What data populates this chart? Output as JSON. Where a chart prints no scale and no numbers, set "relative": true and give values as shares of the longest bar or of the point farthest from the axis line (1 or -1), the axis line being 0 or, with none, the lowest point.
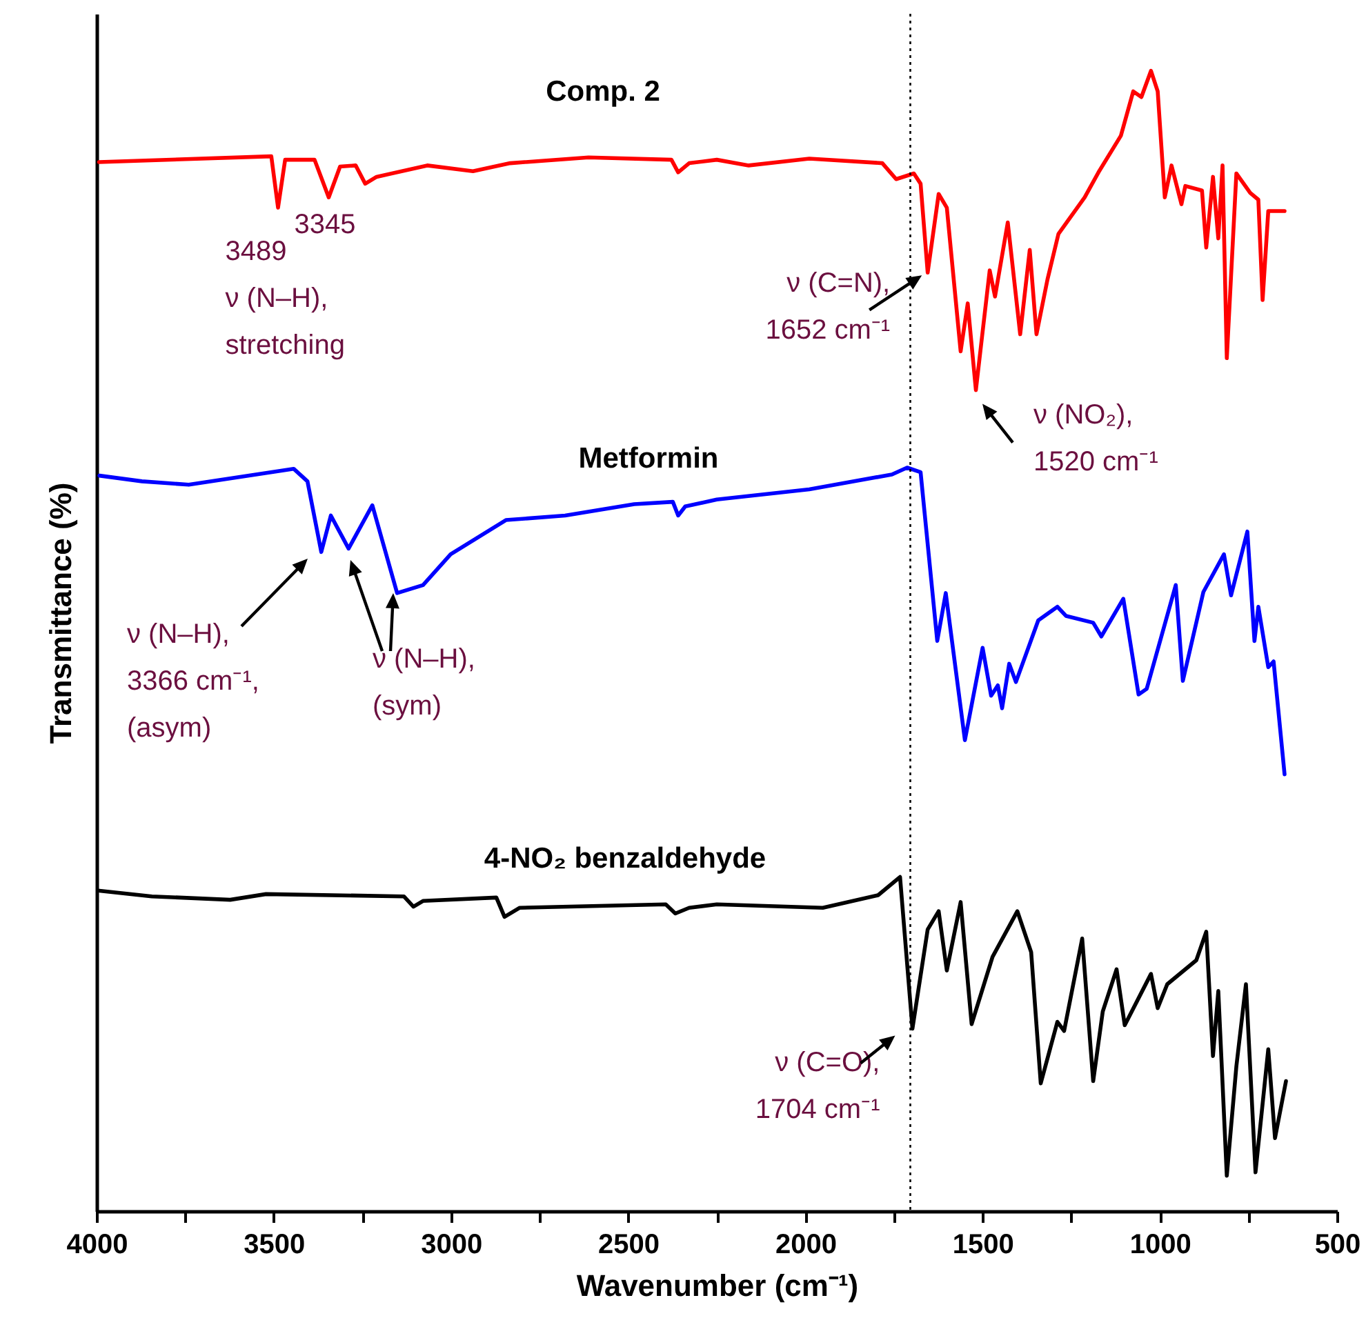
{
  "chart_data": {
    "type": "line",
    "relative": true,
    "xlabel": "Wavenumber (cm⁻¹)",
    "ylabel": "Transmittance (%)",
    "tick_labels": "x",
    "xlim": [
      4000,
      500
    ],
    "xticks": [
      4000,
      {
        "value": 3750,
        "label": null
      },
      3500,
      {
        "value": 3250,
        "label": null
      },
      3000,
      {
        "value": 2750,
        "label": null
      },
      2500,
      {
        "value": 2250,
        "label": null
      },
      2000,
      {
        "value": 1750,
        "label": null
      },
      1500,
      {
        "value": 1250,
        "label": null
      },
      1000,
      {
        "value": 750,
        "label": null
      },
      500
    ],
    "series": [
      {
        "name": "Comp. 2",
        "color": "#ff0000",
        "x": [
          3993,
          3507,
          3488,
          3468,
          3385,
          3345,
          3313,
          3269,
          3242,
          3210,
          3067,
          2938,
          2833,
          2612,
          2378,
          2359,
          2328,
          2250,
          2160,
          1989,
          1783,
          1744,
          1694,
          1675,
          1655,
          1624,
          1601,
          1562,
          1542,
          1519,
          1480,
          1465,
          1429,
          1394,
          1367,
          1348,
          1317,
          1286,
          1212,
          1173,
          1110,
          1075,
          1052,
          1025,
          1006,
          986,
          967,
          939,
          928,
          881,
          869,
          850,
          835,
          823,
          811,
          784,
          745,
          722,
          710,
          694,
          648
        ],
        "values": [
          0.92,
          0.925,
          0.88,
          0.922,
          0.922,
          0.889,
          0.916,
          0.917,
          0.901,
          0.907,
          0.917,
          0.912,
          0.919,
          0.924,
          0.922,
          0.911,
          0.919,
          0.922,
          0.917,
          0.923,
          0.919,
          0.905,
          0.91,
          0.901,
          0.823,
          0.892,
          0.88,
          0.754,
          0.796,
          0.72,
          0.825,
          0.802,
          0.867,
          0.769,
          0.843,
          0.769,
          0.817,
          0.857,
          0.889,
          0.911,
          0.943,
          0.982,
          0.977,
          1,
          0.982,
          0.889,
          0.917,
          0.883,
          0.899,
          0.895,
          0.845,
          0.907,
          0.853,
          0.917,
          0.748,
          0.91,
          0.893,
          0.887,
          0.799,
          0.877,
          0.877
        ]
      },
      {
        "name": "Metformin",
        "color": "#0000ff",
        "x": [
          3992,
          3872,
          3740,
          3444,
          3405,
          3366,
          3339,
          3289,
          3222,
          3152,
          3079,
          3001,
          2845,
          2678,
          2483,
          2374,
          2359,
          2339,
          2250,
          1989,
          1756,
          1713,
          1675,
          1628,
          1604,
          1550,
          1500,
          1476,
          1457,
          1445,
          1425,
          1406,
          1343,
          1289,
          1265,
          1188,
          1165,
          1103,
          1060,
          1037,
          955,
          935,
          877,
          819,
          799,
          753,
          733,
          722,
          694,
          679,
          648
        ],
        "values": [
          0.645,
          0.64,
          0.637,
          0.651,
          0.64,
          0.578,
          0.61,
          0.581,
          0.619,
          0.542,
          0.549,
          0.576,
          0.606,
          0.61,
          0.62,
          0.622,
          0.61,
          0.618,
          0.624,
          0.633,
          0.646,
          0.652,
          0.648,
          0.5,
          0.542,
          0.413,
          0.494,
          0.452,
          0.461,
          0.441,
          0.48,
          0.464,
          0.518,
          0.53,
          0.522,
          0.516,
          0.504,
          0.537,
          0.453,
          0.458,
          0.549,
          0.465,
          0.543,
          0.576,
          0.54,
          0.596,
          0.5,
          0.53,
          0.477,
          0.482,
          0.383
        ]
      },
      {
        "name": "4-NO₂ benzaldehyde",
        "color": "#000000",
        "x": [
          3992,
          3844,
          3623,
          3522,
          3133,
          3106,
          3079,
          2872,
          2849,
          2806,
          2394,
          2367,
          2328,
          2250,
          1951,
          1795,
          1733,
          1698,
          1655,
          1624,
          1601,
          1562,
          1531,
          1472,
          1402,
          1363,
          1336,
          1289,
          1270,
          1219,
          1188,
          1161,
          1122,
          1099,
          1025,
          1006,
          979,
          897,
          869,
          850,
          835,
          811,
          784,
          757,
          730,
          694,
          675,
          644
        ],
        "values": [
          0.281,
          0.276,
          0.273,
          0.278,
          0.276,
          0.267,
          0.272,
          0.275,
          0.258,
          0.266,
          0.269,
          0.261,
          0.266,
          0.269,
          0.266,
          0.277,
          0.293,
          0.16,
          0.247,
          0.263,
          0.211,
          0.271,
          0.164,
          0.223,
          0.263,
          0.227,
          0.112,
          0.166,
          0.158,
          0.239,
          0.114,
          0.175,
          0.212,
          0.163,
          0.208,
          0.178,
          0.199,
          0.22,
          0.245,
          0.136,
          0.193,
          0.031,
          0.127,
          0.199,
          0.034,
          0.142,
          0.064,
          0.114
        ]
      }
    ],
    "ref_lines": [
      {
        "axis": "x",
        "value": 1704,
        "line_style": "dotted"
      }
    ],
    "annotations": [
      {
        "text": "3345",
        "x": 3345,
        "y": 0.889
      },
      {
        "text": "3489\nν (N–H),\nstretching",
        "x": 3489,
        "y": 0.88
      },
      {
        "text": "ν (C=N),\n1652 cm⁻¹",
        "x": 1652,
        "y": 0.823
      },
      {
        "text": "ν (NO₂),\n1520 cm⁻¹",
        "x": 1520,
        "y": 0.72
      },
      "ν (N–H),\n3366 cm⁻¹,\n(asym)",
      "ν (N–H),\n(sym)",
      {
        "text": "ν (C=O),\n1704 cm⁻¹",
        "x": 1704,
        "y": 0.16
      }
    ]
  }
}
